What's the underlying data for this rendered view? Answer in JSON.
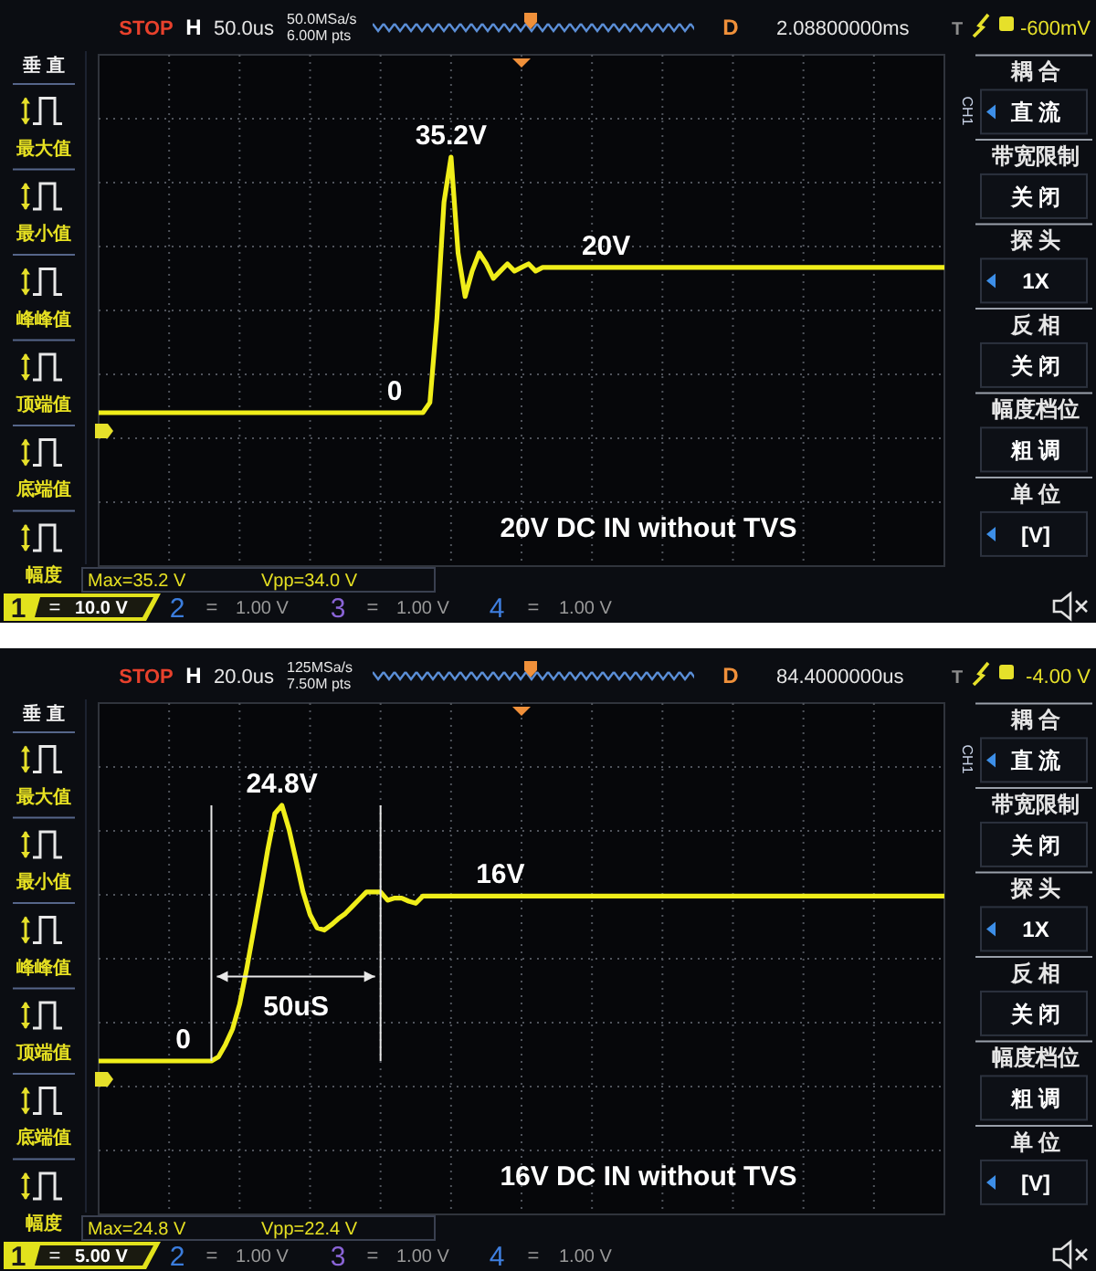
{
  "chart_data": [
    {
      "type": "line",
      "title": "20V DC IN without TVS",
      "grid": true,
      "categories": [
        null,
        null,
        null,
        null,
        null,
        null,
        null,
        null,
        null,
        null,
        null,
        null,
        null,
        null,
        null,
        null,
        null,
        null,
        null,
        null,
        null,
        null,
        null,
        null,
        null,
        null,
        null,
        null,
        null,
        null,
        null,
        null,
        null,
        null,
        null,
        null,
        null,
        null,
        null,
        null,
        null,
        null,
        null,
        null,
        null,
        null,
        null,
        null,
        null,
        null,
        null,
        null,
        null,
        null,
        null,
        null,
        null,
        null,
        null,
        null,
        null,
        null,
        null,
        null,
        null,
        null,
        null,
        null,
        null,
        null,
        null,
        null,
        null,
        null,
        null,
        null,
        null,
        null,
        null,
        null,
        null,
        null,
        null,
        null,
        null,
        null,
        null,
        null,
        null,
        null,
        null,
        null,
        null,
        null,
        null,
        null,
        null,
        null,
        null,
        null,
        null,
        null,
        null,
        null,
        null,
        null,
        null,
        null,
        null,
        null,
        null,
        null,
        null,
        null,
        null,
        null,
        null,
        null,
        null,
        null,
        null
      ],
      "series": [
        {
          "color": "#f0ee1a",
          "values": [
            0,
            0,
            0,
            0,
            0,
            0,
            0,
            0,
            0,
            0,
            0,
            0,
            0,
            0,
            0,
            0,
            0,
            0,
            0,
            0,
            0,
            0,
            0,
            0,
            0,
            0,
            0,
            0,
            0,
            0,
            0,
            0,
            0,
            0,
            0,
            0,
            0,
            0,
            0,
            0,
            0,
            0,
            0,
            0,
            0,
            0,
            0,
            1.4,
            13,
            29,
            35.2,
            22,
            16,
            19.5,
            22,
            20.5,
            18.5,
            19.5,
            20.5,
            19.5,
            20,
            20.5,
            19.5,
            20,
            20,
            20,
            20,
            20,
            20,
            20,
            20,
            20,
            20,
            20,
            20,
            20,
            20,
            20,
            20,
            20,
            20,
            20,
            20,
            20,
            20,
            20,
            20,
            20,
            20,
            20,
            20,
            20,
            20,
            20,
            20,
            20,
            20,
            20,
            20,
            20,
            20,
            20,
            20,
            20,
            20,
            20,
            20,
            20,
            20,
            20,
            20,
            20,
            20,
            20,
            20,
            20,
            20,
            20,
            20,
            20,
            20
          ],
          "value_labels": [
            null,
            null,
            null,
            null,
            null,
            null,
            null,
            null,
            null,
            null,
            null,
            null,
            null,
            null,
            null,
            null,
            null,
            null,
            null,
            null,
            null,
            null,
            null,
            null,
            null,
            null,
            null,
            null,
            null,
            null,
            null,
            null,
            null,
            null,
            null,
            null,
            null,
            null,
            null,
            null,
            null,
            null,
            "0",
            null,
            null,
            null,
            null,
            null,
            null,
            null,
            "35.2V",
            null,
            null,
            null,
            null,
            null,
            null,
            null,
            null,
            null,
            null,
            null,
            null,
            null,
            null,
            null,
            null,
            null,
            null,
            null,
            null,
            null,
            "20V",
            null,
            null,
            null,
            null,
            null,
            null,
            null,
            null,
            null,
            null,
            null,
            null,
            null,
            null,
            null,
            null,
            null,
            null,
            null,
            null,
            null,
            null,
            null,
            null,
            null,
            null,
            null,
            null,
            null,
            null,
            null,
            null,
            null,
            null,
            null,
            null,
            null,
            null,
            null,
            null,
            null,
            null,
            null,
            null,
            null,
            null,
            null,
            null
          ]
        }
      ],
      "annotations": [
        "STOP",
        "H",
        "50.0us",
        "50.0MSa/s",
        "6.00M pts",
        "D",
        "2.08800000ms",
        "T",
        "-600mV",
        "垂 直",
        "最大值",
        "最小值",
        "峰峰值",
        "顶端值",
        "底端值",
        "幅度",
        "CH1",
        "耦 合",
        "直 流",
        "带宽限制",
        "关 闭",
        "探 头",
        "1X",
        "反 相",
        "关 闭",
        "幅度档位",
        "粗 调",
        "单 位",
        "[V]",
        "Max=35.2 V",
        "Vpp=34.0 V",
        "1",
        "=",
        "10.0 V",
        "2",
        "=",
        "1.00 V",
        "3",
        "=",
        "1.00 V",
        "4",
        "=",
        "1.00 V"
      ]
    },
    {
      "type": "line",
      "title": "16V DC IN without TVS",
      "grid": true,
      "categories": [
        null,
        null,
        null,
        null,
        null,
        null,
        null,
        null,
        null,
        null,
        null,
        null,
        null,
        null,
        null,
        null,
        null,
        null,
        null,
        null,
        null,
        null,
        null,
        null,
        null,
        null,
        null,
        null,
        null,
        null,
        null,
        null,
        null,
        null,
        null,
        null,
        null,
        null,
        null,
        null,
        null,
        null,
        null,
        null,
        null,
        null,
        null,
        null,
        null,
        null,
        null,
        null,
        null,
        null,
        null,
        null,
        null,
        null,
        null,
        null,
        null,
        null,
        null,
        null,
        null,
        null,
        null,
        null,
        null,
        null,
        null,
        null,
        null,
        null,
        null,
        null,
        null,
        null,
        null,
        null,
        null,
        null,
        null,
        null,
        null,
        null,
        null,
        null,
        null,
        null,
        null,
        null,
        null,
        null,
        null,
        null,
        null,
        null,
        null,
        null,
        null,
        null,
        null,
        null,
        null,
        null,
        null,
        null,
        null,
        null,
        null,
        null,
        null,
        null,
        null,
        null,
        null,
        null,
        null,
        null,
        null
      ],
      "series": [
        {
          "color": "#f0ee1a",
          "values": [
            0,
            0,
            0,
            0,
            0,
            0,
            0,
            0,
            0,
            0,
            0,
            0,
            0,
            0,
            0,
            0,
            0,
            0.4,
            1.6,
            3.1,
            5.5,
            8.9,
            12.7,
            16.5,
            20.5,
            24,
            24.8,
            22.5,
            19.5,
            16.4,
            14.2,
            12.9,
            12.7,
            13.2,
            13.8,
            14.3,
            15,
            15.7,
            16.4,
            16.4,
            16.4,
            15.6,
            15.8,
            15.8,
            15.5,
            15.3,
            16,
            16,
            16,
            16,
            16,
            16,
            16,
            16,
            16,
            16,
            16,
            16,
            16,
            16,
            16,
            16,
            16,
            16,
            16,
            16,
            16,
            16,
            16,
            16,
            16,
            16,
            16,
            16,
            16,
            16,
            16,
            16,
            16,
            16,
            16,
            16,
            16,
            16,
            16,
            16,
            16,
            16,
            16,
            16,
            16,
            16,
            16,
            16,
            16,
            16,
            16,
            16,
            16,
            16,
            16,
            16,
            16,
            16,
            16,
            16,
            16,
            16,
            16,
            16,
            16,
            16,
            16,
            16,
            16,
            16,
            16,
            16,
            16,
            16,
            16
          ],
          "value_labels": [
            null,
            null,
            null,
            null,
            null,
            null,
            null,
            null,
            null,
            null,
            null,
            null,
            "0",
            null,
            null,
            null,
            null,
            null,
            null,
            null,
            null,
            null,
            null,
            null,
            null,
            null,
            "24.8V",
            null,
            null,
            null,
            null,
            null,
            null,
            null,
            null,
            null,
            null,
            null,
            null,
            null,
            null,
            null,
            null,
            null,
            null,
            null,
            null,
            null,
            null,
            null,
            null,
            null,
            null,
            null,
            null,
            null,
            null,
            "16V",
            null,
            null,
            null,
            null,
            null,
            null,
            null,
            null,
            null,
            null,
            null,
            null,
            null,
            null,
            null,
            null,
            null,
            null,
            null,
            null,
            null,
            null,
            null,
            null,
            null,
            null,
            null,
            null,
            null,
            null,
            null,
            null,
            null,
            null,
            null,
            null,
            null,
            null,
            null,
            null,
            null,
            null,
            null,
            null,
            null,
            null,
            null,
            null,
            null,
            null,
            null,
            null,
            null,
            null,
            null,
            null,
            null,
            null,
            null,
            null,
            null,
            null,
            null
          ]
        }
      ],
      "annotations": [
        "STOP",
        "H",
        "20.0us",
        "125MSa/s",
        "7.50M pts",
        "D",
        "84.4000000us",
        "T",
        "-4.00 V",
        "垂 直",
        "最大值",
        "最小值",
        "峰峰值",
        "顶端值",
        "底端值",
        "幅度",
        "CH1",
        "耦 合",
        "直 流",
        "带宽限制",
        "关 闭",
        "探 头",
        "1X",
        "反 相",
        "关 闭",
        "幅度档位",
        "粗 调",
        "单 位",
        "[V]",
        "Max=24.8 V",
        "Vpp=22.4 V",
        "1",
        "=",
        "5.00 V",
        "2",
        "=",
        "1.00 V",
        "3",
        "=",
        "1.00 V",
        "4",
        "=",
        "1.00 V",
        "50uS"
      ]
    }
  ]
}
